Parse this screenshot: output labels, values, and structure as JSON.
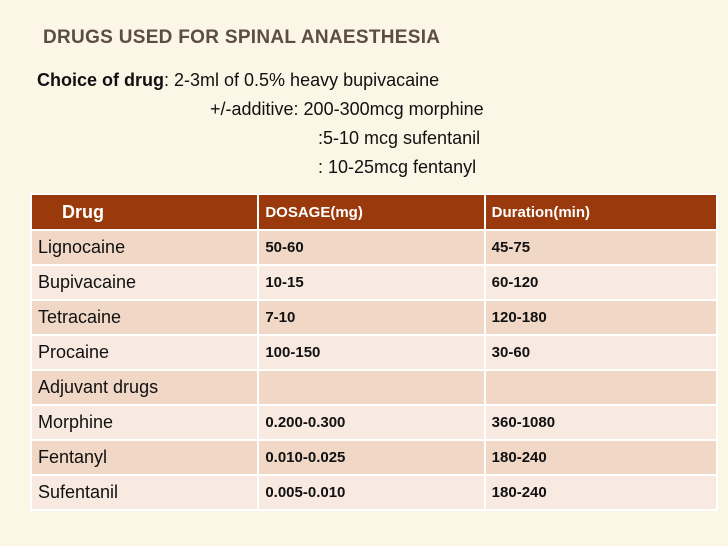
{
  "header": {
    "title": "DRUGS USED FOR SPINAL ANAESTHESIA"
  },
  "intro": {
    "label": "Choice of drug",
    "lines": [
      ": 2-3ml of 0.5% heavy bupivacaine",
      "+/-additive: 200-300mcg morphine",
      ":5-10 mcg sufentanil",
      ": 10-25mcg fentanyl"
    ]
  },
  "table": {
    "columns": [
      "Drug",
      "DOSAGE(mg)",
      "Duration(min)"
    ],
    "rows": [
      [
        "Lignocaine",
        "50-60",
        "45-75"
      ],
      [
        "Bupivacaine",
        "10-15",
        "60-120"
      ],
      [
        "Tetracaine",
        "7-10",
        "120-180"
      ],
      [
        "Procaine",
        "100-150",
        "30-60"
      ],
      [
        "Adjuvant drugs",
        "",
        ""
      ],
      [
        "Morphine",
        "0.200-0.300",
        "360-1080"
      ],
      [
        "Fentanyl",
        "0.010-0.025",
        "180-240"
      ],
      [
        "Sufentanil",
        "0.005-0.010",
        "180-240"
      ]
    ]
  }
}
